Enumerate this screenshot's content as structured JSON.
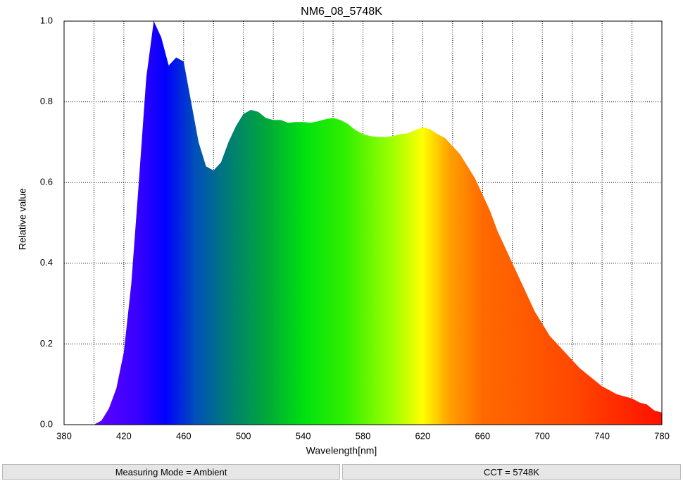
{
  "chart_data": {
    "type": "area",
    "title": "NM6_08_5748K",
    "x_label": "Wavelength[nm]",
    "y_label": "Relative value",
    "x": [
      380,
      385,
      390,
      395,
      400,
      405,
      410,
      415,
      420,
      425,
      430,
      435,
      440,
      445,
      450,
      455,
      460,
      465,
      470,
      475,
      480,
      485,
      490,
      495,
      500,
      505,
      510,
      515,
      520,
      525,
      530,
      535,
      540,
      545,
      550,
      555,
      560,
      565,
      570,
      575,
      580,
      585,
      590,
      595,
      600,
      605,
      610,
      615,
      620,
      625,
      630,
      635,
      640,
      645,
      650,
      655,
      660,
      665,
      670,
      675,
      680,
      685,
      690,
      695,
      700,
      705,
      710,
      715,
      720,
      725,
      730,
      735,
      740,
      745,
      750,
      755,
      760,
      765,
      770,
      775,
      780
    ],
    "values": [
      0,
      0,
      0,
      0,
      0,
      0.01,
      0.04,
      0.09,
      0.18,
      0.35,
      0.6,
      0.86,
      1.0,
      0.96,
      0.89,
      0.91,
      0.9,
      0.8,
      0.7,
      0.64,
      0.63,
      0.65,
      0.7,
      0.74,
      0.77,
      0.78,
      0.775,
      0.76,
      0.755,
      0.755,
      0.748,
      0.75,
      0.75,
      0.748,
      0.752,
      0.757,
      0.76,
      0.755,
      0.745,
      0.73,
      0.72,
      0.715,
      0.713,
      0.713,
      0.715,
      0.72,
      0.722,
      0.73,
      0.737,
      0.732,
      0.72,
      0.71,
      0.69,
      0.67,
      0.64,
      0.61,
      0.57,
      0.53,
      0.48,
      0.44,
      0.4,
      0.36,
      0.32,
      0.28,
      0.25,
      0.22,
      0.2,
      0.18,
      0.16,
      0.14,
      0.125,
      0.11,
      0.095,
      0.085,
      0.075,
      0.07,
      0.065,
      0.055,
      0.05,
      0.035,
      0.03
    ],
    "xlim": [
      380,
      780
    ],
    "ylim": [
      0,
      1
    ],
    "xticks": [
      380,
      420,
      460,
      500,
      540,
      580,
      620,
      660,
      700,
      740,
      780
    ],
    "x_minor_ticks": [
      400,
      440,
      480,
      520,
      560,
      600,
      640,
      680,
      720,
      760
    ],
    "yticks": [
      {
        "value": 0,
        "label": "0.0"
      },
      0.2,
      0.4,
      0.6,
      0.8,
      {
        "value": 1,
        "label": "1.0"
      }
    ],
    "grid": true
  },
  "status_bar": [
    "Measuring Mode = Ambient",
    "CCT = 5748K"
  ]
}
